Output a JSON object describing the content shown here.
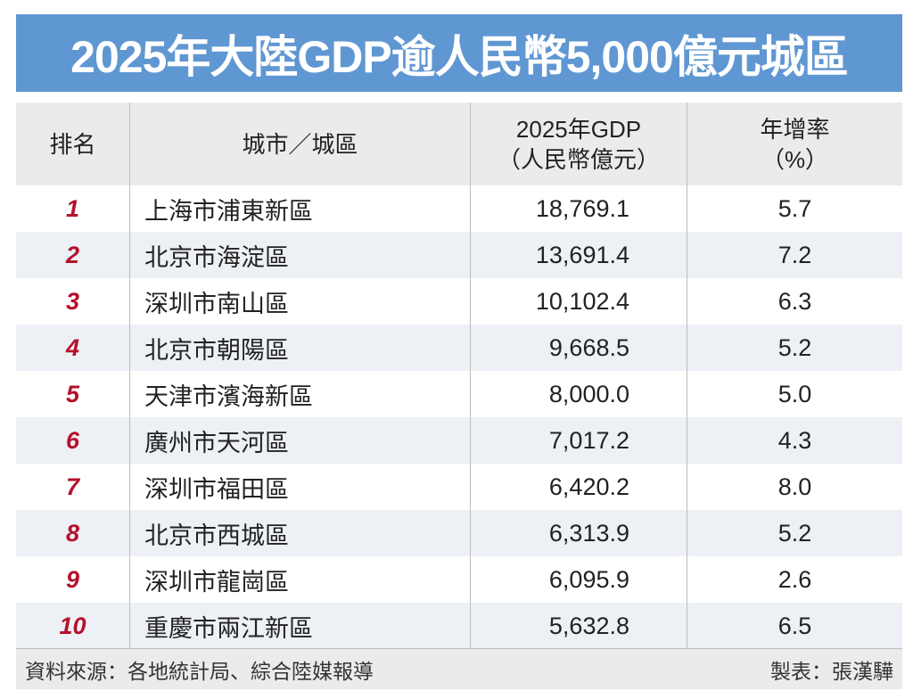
{
  "title": "2025年大陸GDP逾人民幣5,000億元城區",
  "header": {
    "rank": "排名",
    "city": "城市／城區",
    "gdp_line1": "2025年GDP",
    "gdp_line2": "（人民幣億元）",
    "growth_line1": "年增率",
    "growth_line2": "（%）"
  },
  "rows": [
    {
      "rank": "1",
      "city": "上海市浦東新區",
      "gdp": "18,769.1",
      "growth": "5.7"
    },
    {
      "rank": "2",
      "city": "北京市海淀區",
      "gdp": "13,691.4",
      "growth": "7.2"
    },
    {
      "rank": "3",
      "city": "深圳市南山區",
      "gdp": "10,102.4",
      "growth": "6.3"
    },
    {
      "rank": "4",
      "city": "北京市朝陽區",
      "gdp": "9,668.5",
      "growth": "5.2"
    },
    {
      "rank": "5",
      "city": "天津市濱海新區",
      "gdp": "8,000.0",
      "growth": "5.0"
    },
    {
      "rank": "6",
      "city": "廣州市天河區",
      "gdp": "7,017.2",
      "growth": "4.3"
    },
    {
      "rank": "7",
      "city": "深圳市福田區",
      "gdp": "6,420.2",
      "growth": "8.0"
    },
    {
      "rank": "8",
      "city": "北京市西城區",
      "gdp": "6,313.9",
      "growth": "5.2"
    },
    {
      "rank": "9",
      "city": "深圳市龍崗區",
      "gdp": "6,095.9",
      "growth": "2.6"
    },
    {
      "rank": "10",
      "city": "重慶市兩江新區",
      "gdp": "5,632.8",
      "growth": "6.5"
    }
  ],
  "footer": {
    "source": "資料來源：各地統計局、綜合陸媒報導",
    "credit": "製表：張漢驊"
  },
  "colors": {
    "title_bg": "#5f97d2",
    "rank_text": "#b5112a",
    "header_bg": "#ebebeb",
    "alt_row_bg": "#edf0f5"
  }
}
